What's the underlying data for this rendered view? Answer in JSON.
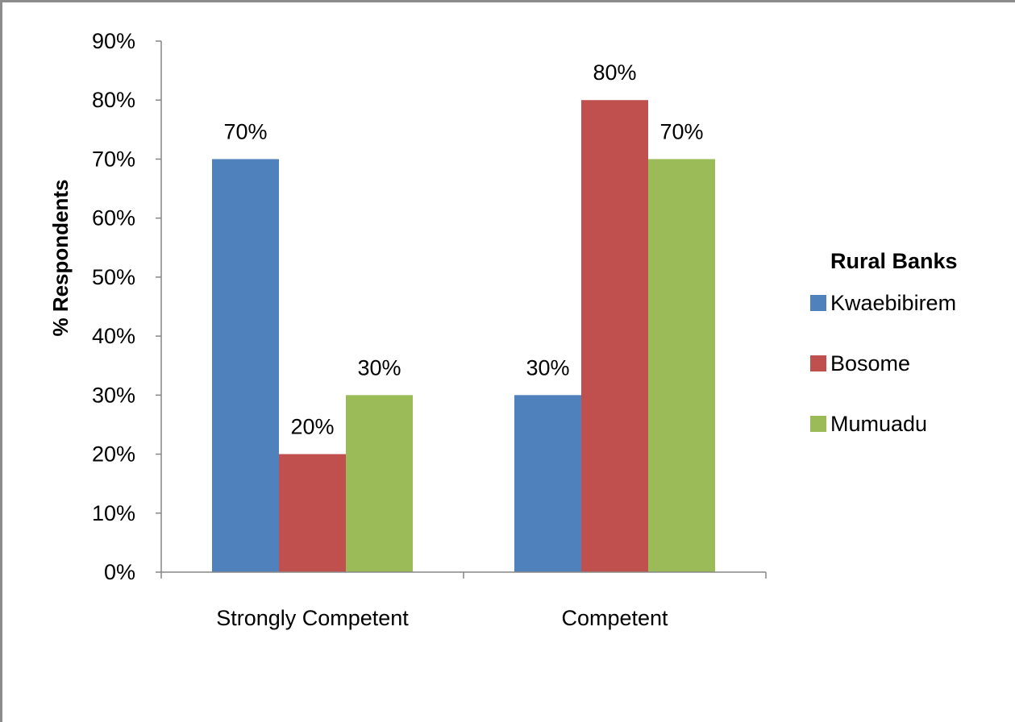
{
  "chart_data": {
    "type": "bar",
    "title": "",
    "xlabel": "",
    "ylabel": "% Respondents",
    "ylim": [
      0,
      90
    ],
    "y_tick_step": 10,
    "y_unit": "%",
    "categories": [
      "Strongly Competent",
      "Competent"
    ],
    "series": [
      {
        "name": "Kwaebibirem",
        "color": "#4f81bd",
        "values": [
          70,
          30
        ]
      },
      {
        "name": "Bosome",
        "color": "#c0504d",
        "values": [
          20,
          80
        ]
      },
      {
        "name": "Mumuadu",
        "color": "#9bbb59",
        "values": [
          30,
          70
        ]
      }
    ],
    "data_labels": true,
    "legend": {
      "title": "Rural Banks",
      "position": "right"
    },
    "grid": false
  }
}
